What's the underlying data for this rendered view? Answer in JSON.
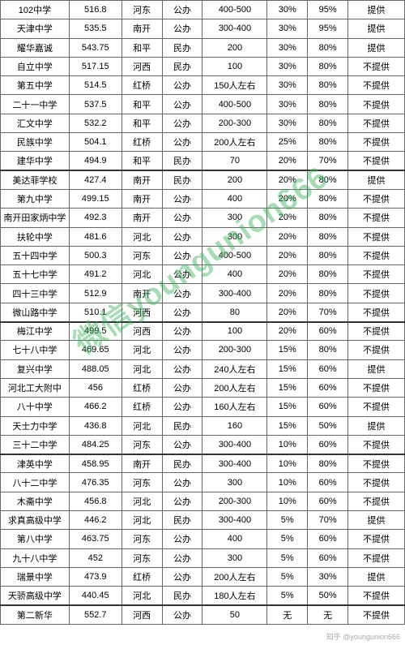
{
  "table": {
    "colWidths": [
      "17%",
      "13%",
      "10%",
      "10%",
      "16%",
      "10%",
      "10%",
      "14%"
    ],
    "rows": [
      {
        "sep": false,
        "cells": [
          "102中学",
          "516.8",
          "河东",
          "公办",
          "400-500",
          "30%",
          "95%",
          "提供"
        ]
      },
      {
        "sep": false,
        "cells": [
          "天津中学",
          "535.5",
          "南开",
          "公办",
          "300-400",
          "30%",
          "95%",
          "提供"
        ]
      },
      {
        "sep": false,
        "cells": [
          "耀华嘉诚",
          "543.75",
          "和平",
          "民办",
          "200",
          "30%",
          "80%",
          "提供"
        ]
      },
      {
        "sep": false,
        "cells": [
          "自立中学",
          "517.15",
          "河西",
          "民办",
          "100",
          "30%",
          "80%",
          "不提供"
        ]
      },
      {
        "sep": false,
        "cells": [
          "第五中学",
          "514.5",
          "红桥",
          "公办",
          "150人左右",
          "30%",
          "80%",
          "不提供"
        ]
      },
      {
        "sep": false,
        "cells": [
          "二十一中学",
          "537.5",
          "和平",
          "公办",
          "400-500",
          "30%",
          "80%",
          "不提供"
        ]
      },
      {
        "sep": false,
        "cells": [
          "汇文中学",
          "532.2",
          "和平",
          "公办",
          "200-300",
          "30%",
          "80%",
          "不提供"
        ]
      },
      {
        "sep": false,
        "cells": [
          "民族中学",
          "504.1",
          "红桥",
          "公办",
          "200人左右",
          "25%",
          "80%",
          "不提供"
        ]
      },
      {
        "sep": false,
        "cells": [
          "建华中学",
          "494.9",
          "和平",
          "民办",
          "70",
          "20%",
          "70%",
          "不提供"
        ]
      },
      {
        "sep": true,
        "cells": [
          "美达菲学校",
          "427.4",
          "南开",
          "民办",
          "200",
          "20%",
          "80%",
          "提供"
        ]
      },
      {
        "sep": false,
        "cells": [
          "第九中学",
          "499.15",
          "南开",
          "公办",
          "400",
          "20%",
          "80%",
          "不提供"
        ]
      },
      {
        "sep": false,
        "cells": [
          "南开田家炳中学",
          "492.3",
          "南开",
          "公办",
          "300",
          "20%",
          "80%",
          "不提供"
        ]
      },
      {
        "sep": false,
        "cells": [
          "扶轮中学",
          "481.6",
          "河北",
          "公办",
          "300",
          "20%",
          "80%",
          "不提供"
        ]
      },
      {
        "sep": false,
        "cells": [
          "五十四中学",
          "500.3",
          "河东",
          "公办",
          "400-500",
          "20%",
          "80%",
          "不提供"
        ]
      },
      {
        "sep": false,
        "cells": [
          "五十七中学",
          "491.2",
          "河北",
          "公办",
          "400",
          "20%",
          "80%",
          "不提供"
        ]
      },
      {
        "sep": false,
        "cells": [
          "四十三中学",
          "512.9",
          "南开",
          "公办",
          "300-400",
          "20%",
          "80%",
          "不提供"
        ]
      },
      {
        "sep": false,
        "cells": [
          "微山路中学",
          "510.1",
          "河西",
          "公办",
          "80",
          "20%",
          "70%",
          "不提供"
        ]
      },
      {
        "sep": true,
        "cells": [
          "梅江中学",
          "499.5",
          "河西",
          "公办",
          "100",
          "20%",
          "60%",
          "不提供"
        ]
      },
      {
        "sep": false,
        "cells": [
          "七十八中学",
          "469.65",
          "河北",
          "公办",
          "200-300",
          "15%",
          "80%",
          "不提供"
        ]
      },
      {
        "sep": false,
        "cells": [
          "复兴中学",
          "488.05",
          "河北",
          "公办",
          "240人左右",
          "15%",
          "60%",
          "提供"
        ]
      },
      {
        "sep": false,
        "cells": [
          "河北工大附中",
          "456",
          "红桥",
          "公办",
          "200人左右",
          "15%",
          "60%",
          "不提供"
        ]
      },
      {
        "sep": false,
        "cells": [
          "八十中学",
          "466.2",
          "红桥",
          "公办",
          "160人左右",
          "15%",
          "60%",
          "不提供"
        ]
      },
      {
        "sep": false,
        "cells": [
          "天士力中学",
          "436.8",
          "河北",
          "民办",
          "160",
          "15%",
          "50%",
          "提供"
        ]
      },
      {
        "sep": false,
        "cells": [
          "三十二中学",
          "484.25",
          "河东",
          "公办",
          "300-400",
          "10%",
          "60%",
          "不提供"
        ]
      },
      {
        "sep": true,
        "cells": [
          "津英中学",
          "458.95",
          "南开",
          "民办",
          "300-400",
          "10%",
          "80%",
          "不提供"
        ]
      },
      {
        "sep": false,
        "cells": [
          "八十二中学",
          "476.35",
          "河东",
          "公办",
          "300",
          "10%",
          "60%",
          "不提供"
        ]
      },
      {
        "sep": false,
        "cells": [
          "木斋中学",
          "456.8",
          "河北",
          "公办",
          "200-300",
          "10%",
          "60%",
          "不提供"
        ]
      },
      {
        "sep": false,
        "cells": [
          "求真高级中学",
          "446.2",
          "河北",
          "民办",
          "300-400",
          "5%",
          "70%",
          "提供"
        ]
      },
      {
        "sep": false,
        "cells": [
          "第八中学",
          "463.75",
          "河东",
          "公办",
          "400",
          "5%",
          "60%",
          "不提供"
        ]
      },
      {
        "sep": false,
        "cells": [
          "九十八中学",
          "452",
          "河东",
          "公办",
          "300",
          "5%",
          "60%",
          "不提供"
        ]
      },
      {
        "sep": false,
        "cells": [
          "瑞景中学",
          "473.9",
          "红桥",
          "公办",
          "200人左右",
          "5%",
          "30%",
          "提供"
        ]
      },
      {
        "sep": false,
        "cells": [
          "天骄高级中学",
          "440.45",
          "河北",
          "民办",
          "180人左右",
          "5%",
          "50%",
          "不提供"
        ]
      },
      {
        "sep": true,
        "cells": [
          "第二新华",
          "552.7",
          "河西",
          "公办",
          "50",
          "无",
          "无",
          "不提供"
        ]
      }
    ]
  },
  "watermark": {
    "text": "微信youngunion666"
  },
  "attribution": {
    "text": "知乎 @youngunion666"
  }
}
